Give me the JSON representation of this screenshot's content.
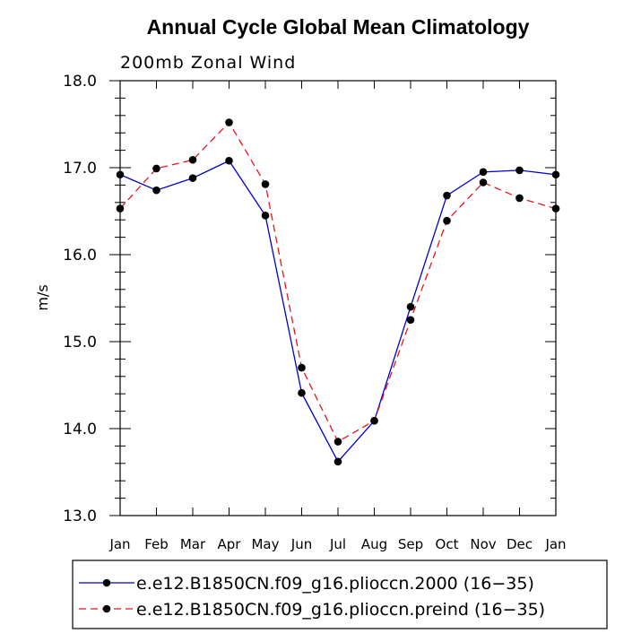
{
  "chart_data": {
    "type": "line",
    "title": "Annual Cycle Global Mean Climatology",
    "subtitle": "200mb Zonal Wind",
    "xlabel": "",
    "ylabel": "m/s",
    "categories": [
      "Jan",
      "Feb",
      "Mar",
      "Apr",
      "May",
      "Jun",
      "Jul",
      "Aug",
      "Sep",
      "Oct",
      "Nov",
      "Dec",
      "Jan"
    ],
    "ylim": [
      13.0,
      18.0
    ],
    "yticks": [
      "13.0",
      "14.0",
      "15.0",
      "16.0",
      "17.0",
      "18.0"
    ],
    "series": [
      {
        "name": "e.e12.B1850CN.f09_g16.plioccn.2000 (16−35)",
        "color": "#0000cc",
        "dash": "solid",
        "values": [
          16.92,
          16.74,
          16.88,
          17.08,
          16.45,
          14.41,
          13.62,
          14.09,
          15.4,
          16.68,
          16.95,
          16.97,
          16.92
        ]
      },
      {
        "name": "e.e12.B1850CN.f09_g16.plioccn.preind (16−35)",
        "color": "#e8141e",
        "dash": "dashed",
        "values": [
          16.53,
          16.99,
          17.09,
          17.52,
          16.81,
          14.7,
          13.85,
          14.09,
          15.25,
          16.39,
          16.83,
          16.65,
          16.53
        ]
      }
    ],
    "legend": "bottom"
  }
}
